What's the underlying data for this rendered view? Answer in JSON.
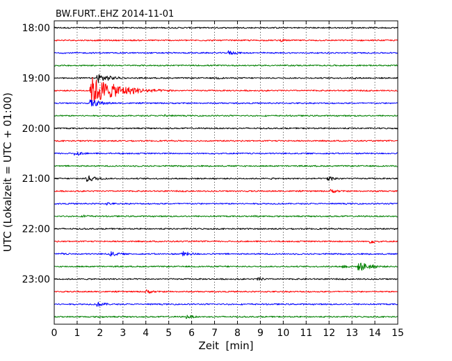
{
  "chart_data": {
    "type": "line",
    "title": "BW.FURT..EHZ 2014-11-01",
    "xlabel": "Zeit  [min]",
    "ylabel": "UTC (Lokalzeit = UTC + 01:00)",
    "xlim": [
      0,
      15
    ],
    "x_ticks": [
      "0",
      "1",
      "2",
      "3",
      "4",
      "5",
      "6",
      "7",
      "8",
      "9",
      "10",
      "11",
      "12",
      "13",
      "14",
      "15"
    ],
    "y_ticks": [
      "18:00",
      "19:00",
      "20:00",
      "21:00",
      "22:00",
      "23:00"
    ],
    "traces_per_hour": 4,
    "trace_minutes": 15,
    "grid": "vertical dotted at each minute",
    "trace_colors": [
      "#000000",
      "#ff0000",
      "#0000ff",
      "#008000"
    ],
    "traces": [
      {
        "start": "18:00",
        "color": "#000000",
        "events": [
          {
            "minute": 7.2,
            "amp": 0.15
          },
          {
            "minute": 11.8,
            "amp": 0.12
          }
        ]
      },
      {
        "start": "18:15",
        "color": "#ff0000",
        "events": [
          {
            "minute": 9.9,
            "amp": 0.35
          },
          {
            "minute": 1.4,
            "amp": 0.1
          }
        ]
      },
      {
        "start": "18:30",
        "color": "#0000ff",
        "events": [
          {
            "minute": 7.6,
            "amp": 0.6
          },
          {
            "minute": 10.3,
            "amp": 0.12
          }
        ]
      },
      {
        "start": "18:45",
        "color": "#008000",
        "events": [
          {
            "minute": 7.0,
            "amp": 0.25
          },
          {
            "minute": 10.1,
            "amp": 0.15
          }
        ]
      },
      {
        "start": "19:00",
        "color": "#000000",
        "events": [
          {
            "minute": 1.9,
            "amp": 1.2
          },
          {
            "minute": 7.1,
            "amp": 0.35
          },
          {
            "minute": 13.1,
            "amp": 0.3
          }
        ]
      },
      {
        "start": "19:15",
        "color": "#ff0000",
        "events": [
          {
            "minute": 1.6,
            "amp": 3.5
          },
          {
            "minute": 3.4,
            "amp": 1.0
          },
          {
            "minute": 5.0,
            "amp": 0.3
          }
        ]
      },
      {
        "start": "19:30",
        "color": "#0000ff",
        "events": [
          {
            "minute": 1.6,
            "amp": 1.0
          },
          {
            "minute": 8.9,
            "amp": 0.15
          }
        ]
      },
      {
        "start": "19:45",
        "color": "#008000",
        "events": [
          {
            "minute": 4.8,
            "amp": 0.45
          },
          {
            "minute": 6.6,
            "amp": 0.2
          }
        ]
      },
      {
        "start": "20:00",
        "color": "#000000",
        "events": [
          {
            "minute": 7.6,
            "amp": 0.18
          },
          {
            "minute": 12.2,
            "amp": 0.15
          }
        ]
      },
      {
        "start": "20:15",
        "color": "#ff0000",
        "events": [
          {
            "minute": 11.8,
            "amp": 0.2
          },
          {
            "minute": 10.8,
            "amp": 0.12
          }
        ]
      },
      {
        "start": "20:30",
        "color": "#0000ff",
        "events": [
          {
            "minute": 0.9,
            "amp": 0.6
          },
          {
            "minute": 2.9,
            "amp": 0.2
          }
        ]
      },
      {
        "start": "20:45",
        "color": "#008000",
        "events": [
          {
            "minute": 8.0,
            "amp": 0.2
          },
          {
            "minute": 10.8,
            "amp": 0.15
          }
        ]
      },
      {
        "start": "21:00",
        "color": "#000000",
        "events": [
          {
            "minute": 1.4,
            "amp": 0.9
          },
          {
            "minute": 11.9,
            "amp": 0.7
          },
          {
            "minute": 9.5,
            "amp": 0.25
          }
        ]
      },
      {
        "start": "21:15",
        "color": "#ff0000",
        "events": [
          {
            "minute": 12.1,
            "amp": 0.5
          },
          {
            "minute": 14.1,
            "amp": 0.25
          }
        ]
      },
      {
        "start": "21:30",
        "color": "#0000ff",
        "events": [
          {
            "minute": 2.3,
            "amp": 0.4
          },
          {
            "minute": 6.1,
            "amp": 0.15
          }
        ]
      },
      {
        "start": "21:45",
        "color": "#008000",
        "events": [
          {
            "minute": 1.3,
            "amp": 0.4
          },
          {
            "minute": 8.8,
            "amp": 0.3
          }
        ]
      },
      {
        "start": "22:00",
        "color": "#000000",
        "events": [
          {
            "minute": 7.5,
            "amp": 0.18
          },
          {
            "minute": 12.7,
            "amp": 0.12
          }
        ]
      },
      {
        "start": "22:15",
        "color": "#ff0000",
        "events": [
          {
            "minute": 13.8,
            "amp": 0.5
          },
          {
            "minute": 12.5,
            "amp": 0.25
          }
        ]
      },
      {
        "start": "22:30",
        "color": "#0000ff",
        "events": [
          {
            "minute": 2.4,
            "amp": 0.7
          },
          {
            "minute": 5.6,
            "amp": 0.7
          },
          {
            "minute": 0.3,
            "amp": 0.3
          }
        ]
      },
      {
        "start": "22:45",
        "color": "#008000",
        "events": [
          {
            "minute": 12.6,
            "amp": 0.5
          },
          {
            "minute": 13.3,
            "amp": 1.2
          },
          {
            "minute": 7.5,
            "amp": 0.25
          }
        ]
      },
      {
        "start": "23:00",
        "color": "#000000",
        "events": [
          {
            "minute": 8.9,
            "amp": 0.45
          },
          {
            "minute": 11.0,
            "amp": 0.25
          }
        ]
      },
      {
        "start": "23:15",
        "color": "#ff0000",
        "events": [
          {
            "minute": 4.0,
            "amp": 0.55
          },
          {
            "minute": 12.7,
            "amp": 0.15
          }
        ]
      },
      {
        "start": "23:30",
        "color": "#0000ff",
        "events": [
          {
            "minute": 1.9,
            "amp": 0.6
          },
          {
            "minute": 4.2,
            "amp": 0.2
          }
        ]
      },
      {
        "start": "23:45",
        "color": "#008000",
        "events": [
          {
            "minute": 5.8,
            "amp": 0.5
          },
          {
            "minute": 1.9,
            "amp": 0.35
          }
        ]
      }
    ]
  }
}
